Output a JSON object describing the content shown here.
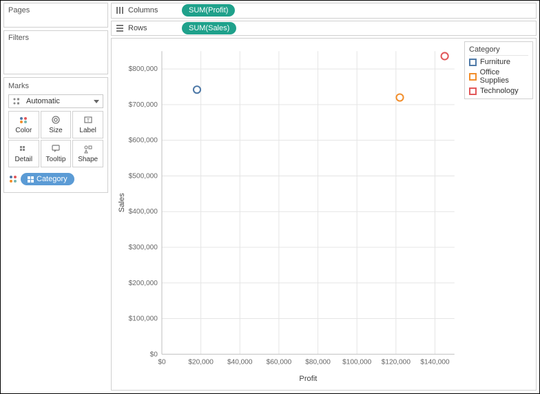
{
  "panels": {
    "pages_title": "Pages",
    "filters_title": "Filters",
    "marks_title": "Marks",
    "marks_type": "Automatic"
  },
  "marks_buttons": {
    "color": "Color",
    "size": "Size",
    "label": "Label",
    "detail": "Detail",
    "tooltip": "Tooltip",
    "shape": "Shape"
  },
  "marks_pill": {
    "label": "Category",
    "color": "#5b9bd5"
  },
  "shelves": {
    "columns_label": "Columns",
    "columns_pill": "SUM(Profit)",
    "rows_label": "Rows",
    "rows_pill": "SUM(Sales)",
    "pill_color": "#1fa18b"
  },
  "legend": {
    "title": "Category",
    "items": [
      {
        "label": "Furniture",
        "color": "#4e79a7"
      },
      {
        "label": "Office Supplies",
        "color": "#f28e2b"
      },
      {
        "label": "Technology",
        "color": "#e15759"
      }
    ]
  },
  "chart": {
    "type": "scatter",
    "x_label": "Profit",
    "y_label": "Sales",
    "xlim": [
      0,
      150000
    ],
    "ylim": [
      0,
      850000
    ],
    "xtick_step": 20000,
    "ytick_step": 100000,
    "xtick_prefix": "$",
    "ytick_prefix": "$",
    "xtick_suffix": "",
    "grid_color": "#e5e5e5",
    "axis_color": "#bfbfbf",
    "background_color": "#ffffff",
    "marker_style": "circle-open",
    "marker_size": 5,
    "marker_stroke": 2,
    "points": [
      {
        "category": "Furniture",
        "x": 18000,
        "y": 742000,
        "color": "#4e79a7"
      },
      {
        "category": "Office Supplies",
        "x": 122000,
        "y": 720000,
        "color": "#f28e2b"
      },
      {
        "category": "Technology",
        "x": 145000,
        "y": 836000,
        "color": "#e15759"
      }
    ],
    "label_fontsize": 10,
    "title_fontsize": 11
  }
}
